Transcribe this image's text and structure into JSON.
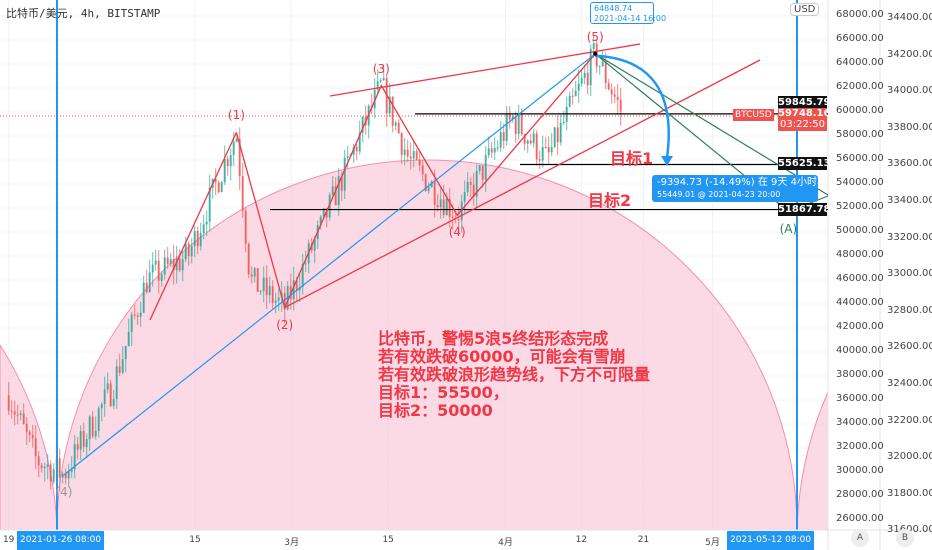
{
  "header": {
    "title": "比特币/美元, 4h, BITSTAMP",
    "currency_badge": "USD"
  },
  "chart_data": {
    "type": "candlestick",
    "timeframe": "4h",
    "y_axis_left": {
      "ylim": [
        26000,
        68000
      ],
      "ticks": [
        "68000.00",
        "66000.00",
        "64000.00",
        "62000.00",
        "60000.00",
        "58000.00",
        "56000.00",
        "54000.00",
        "52000.00",
        "50000.00",
        "48000.00",
        "46000.00",
        "44000.00",
        "42000.00",
        "40000.00",
        "38000.00",
        "36000.00",
        "34000.00",
        "32000.00",
        "30000.00",
        "28000.00",
        "26000.00"
      ]
    },
    "y_axis_right": {
      "ylim": [
        31600,
        34400
      ],
      "ticks": [
        "34400.00",
        "34200.00",
        "34000.00",
        "33800.00",
        "33600.00",
        "33400.00",
        "33200.00",
        "33000.00",
        "32800.00",
        "32600.00",
        "32400.00",
        "32200.00",
        "32000.00",
        "31800.00",
        "31600.00"
      ]
    },
    "x_axis": {
      "ticks": [
        {
          "label": "19",
          "date": "2021-01-19"
        },
        {
          "label": "15",
          "date": "2021-02-15"
        },
        {
          "label": "3月",
          "date": "2021-03-01"
        },
        {
          "label": "15",
          "date": "2021-03-15"
        },
        {
          "label": "4月",
          "date": "2021-04-01"
        },
        {
          "label": "12",
          "date": "2021-04-12"
        },
        {
          "label": "21",
          "date": "2021-04-21"
        },
        {
          "label": "5月",
          "date": "2021-05-01"
        }
      ],
      "highlighted": [
        {
          "label": "2021-01-26  08:00",
          "date": "2021-01-26"
        },
        {
          "label": "2021-05-12  08:00",
          "date": "2021-05-12"
        }
      ]
    },
    "price_path": [
      [
        "2021-01-19",
        36400
      ],
      [
        "2021-01-23",
        31000
      ],
      [
        "2021-01-27",
        29750
      ],
      [
        "2021-02-03",
        37000
      ],
      [
        "2021-02-08",
        46000
      ],
      [
        "2021-02-14",
        48000
      ],
      [
        "2021-02-21",
        58300
      ],
      [
        "2021-02-23",
        46000
      ],
      [
        "2021-02-28",
        43700
      ],
      [
        "2021-03-05",
        50000
      ],
      [
        "2021-03-14",
        62200
      ],
      [
        "2021-03-18",
        56000
      ],
      [
        "2021-03-25",
        51400
      ],
      [
        "2021-04-02",
        59500
      ],
      [
        "2021-04-07",
        56000
      ],
      [
        "2021-04-14",
        64850
      ],
      [
        "2021-04-18",
        59748
      ]
    ],
    "wave_points": [
      {
        "label": "(4)",
        "date": "2021-01-27",
        "price": 29750,
        "color": "#999999"
      },
      {
        "label": "(1)",
        "date": "2021-02-21",
        "price": 58300,
        "color": "#f23645"
      },
      {
        "label": "(2)",
        "date": "2021-02-28",
        "price": 43700,
        "color": "#f23645"
      },
      {
        "label": "(3)",
        "date": "2021-03-14",
        "price": 62200,
        "color": "#f23645"
      },
      {
        "label": "(4)",
        "date": "2021-03-25",
        "price": 51400,
        "color": "#f23645"
      },
      {
        "label": "(5)",
        "date": "2021-04-14",
        "price": 64850,
        "color": "#f23645"
      },
      {
        "label": "(A)",
        "date": "2021-05-12",
        "price": 51700,
        "color": "#2e7d5b"
      }
    ],
    "price_levels": [
      {
        "value": "59845.79",
        "price": 59845.79
      },
      {
        "value": "55625.13",
        "price": 55625.13
      },
      {
        "value": "51867.78",
        "price": 51867.78
      }
    ],
    "current": {
      "symbol": "BTCUSD",
      "price": "59748.16",
      "countdown": "03:22:50"
    },
    "colors": {
      "up": "#26a69a",
      "down": "#ef5350",
      "lines": "#f23645",
      "accent": "#2196f3",
      "cycle": "#f8bbd0"
    }
  },
  "tooltips": {
    "peak": {
      "price": "64848.74",
      "time": "2021-04-14 16:00"
    },
    "projection": {
      "change": "-9394.73 (-14.49%) 在 9天 4小时",
      "detail": "55449.01 @ 2021-04-23  20:00"
    }
  },
  "annotations": {
    "target1": "目标1",
    "target2": "目标2",
    "note_lines": [
      "比特币，警惕5浪5终结形态完成",
      "若有效跌破60000，可能会有雪崩",
      "若有效跌破浪形趋势线，下方不可限量",
      "目标1：55500，",
      "目标2：50000"
    ]
  },
  "buttons": {
    "a": "A",
    "b": "B"
  }
}
